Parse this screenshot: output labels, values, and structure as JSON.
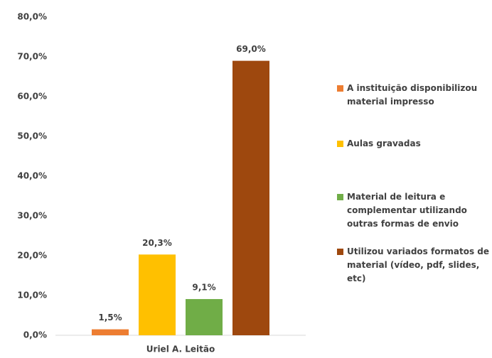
{
  "chart_data": {
    "type": "bar",
    "categories": [
      "Uriel A. Leitão"
    ],
    "series": [
      {
        "name": "A instituição disponibilizou material impresso",
        "color": "#ed7d31",
        "values": [
          1.5
        ],
        "value_labels": [
          "1,5%"
        ]
      },
      {
        "name": "Aulas gravadas",
        "color": "#ffc000",
        "values": [
          20.3
        ],
        "value_labels": [
          "20,3%"
        ]
      },
      {
        "name": "Material de leitura e complementar utilizando outras formas de envio",
        "color": "#70ad47",
        "values": [
          9.1
        ],
        "value_labels": [
          "9,1%"
        ]
      },
      {
        "name": "Utilizou variados formatos de material (vídeo, pdf, slides, etc)",
        "color": "#9e480e",
        "values": [
          69.0
        ],
        "value_labels": [
          "69,0%"
        ]
      }
    ],
    "ylim": [
      0,
      80
    ],
    "yticks": [
      {
        "value": 0,
        "label": "0,0%"
      },
      {
        "value": 10,
        "label": "10,0%"
      },
      {
        "value": 20,
        "label": "20,0%"
      },
      {
        "value": 30,
        "label": "30,0%"
      },
      {
        "value": 40,
        "label": "40,0%"
      },
      {
        "value": 50,
        "label": "50,0%"
      },
      {
        "value": 60,
        "label": "60,0%"
      },
      {
        "value": 70,
        "label": "70,0%"
      },
      {
        "value": 80,
        "label": "80,0%"
      }
    ],
    "grid": false,
    "legend": "right"
  }
}
